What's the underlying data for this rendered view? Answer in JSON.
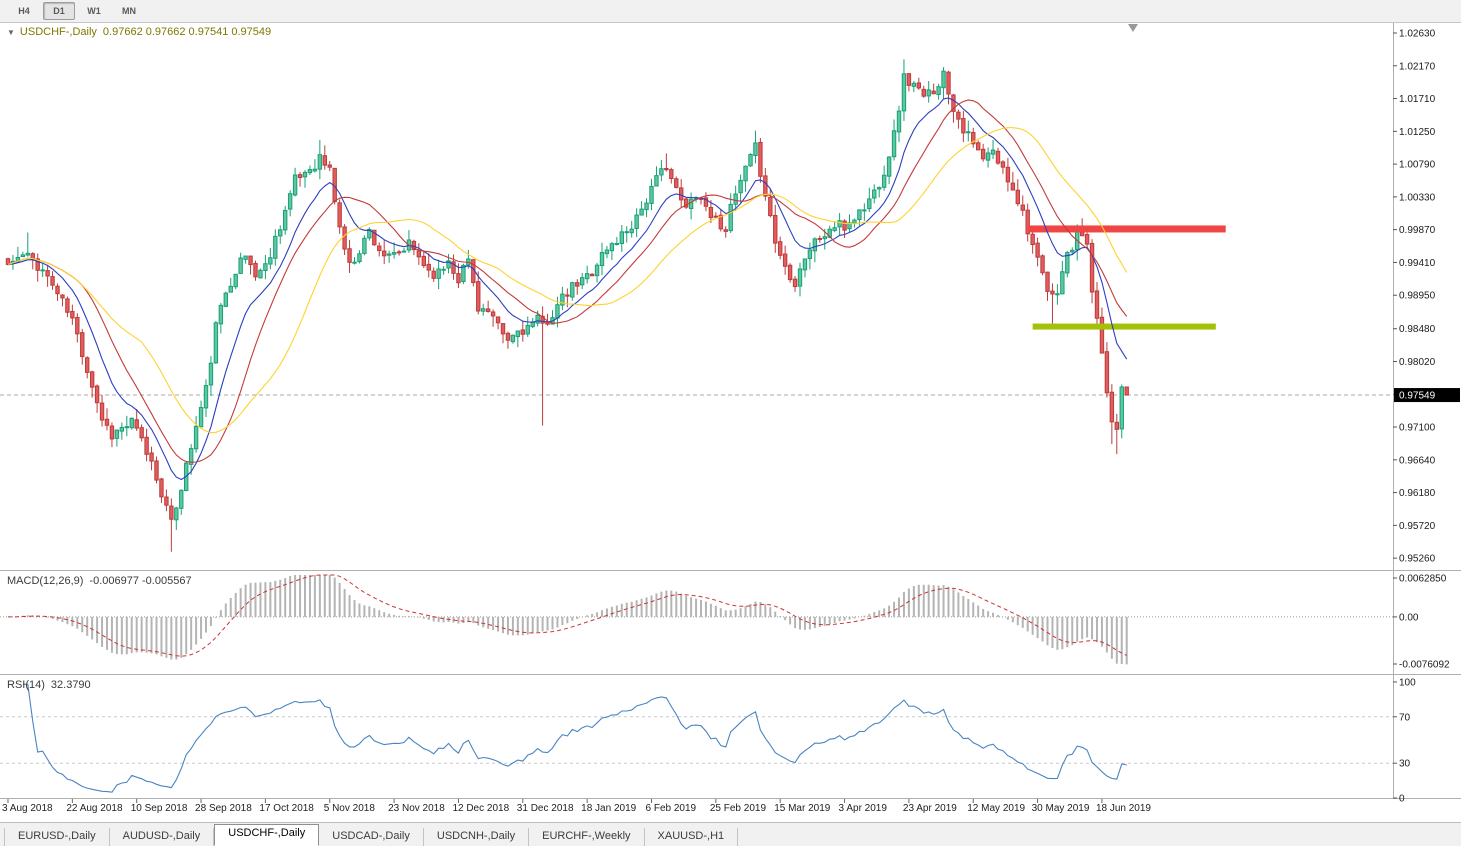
{
  "toolbar": {
    "timeframe_buttons": [
      {
        "label": "H4",
        "active": false
      },
      {
        "label": "D1",
        "active": true
      },
      {
        "label": "W1",
        "active": false
      },
      {
        "label": "MN",
        "active": false
      }
    ]
  },
  "main_chart": {
    "collapse_icon": "▼",
    "title": "USDCHF-,Daily",
    "ohlc_text": "0.97662 0.97662 0.97541 0.97549",
    "current_price_tag": "0.97549",
    "price_axis_labels": [
      "1.02630",
      "1.02170",
      "1.01710",
      "1.01250",
      "1.00790",
      "1.00330",
      "0.99870",
      "0.99410",
      "0.98950",
      "0.98480",
      "0.98020",
      "0.97560",
      "0.97100",
      "0.96640",
      "0.96180",
      "0.95720",
      "0.95260"
    ]
  },
  "macd_panel": {
    "label": "MACD(12,26,9)",
    "values_text": "-0.006977 -0.005567",
    "axis_labels": [
      "0.0062850",
      "0.00",
      "-0.0076092"
    ]
  },
  "rsi_panel": {
    "label": "RSI(14)",
    "value": "32.3790",
    "axis_labels": [
      "100",
      "70",
      "30",
      "0"
    ]
  },
  "time_axis": {
    "bars_per_label": 13,
    "labels": [
      "3 Aug 2018",
      "22 Aug 2018",
      "10 Sep 2018",
      "28 Sep 2018",
      "17 Oct 2018",
      "5 Nov 2018",
      "23 Nov 2018",
      "12 Dec 2018",
      "31 Dec 2018",
      "18 Jan 2019",
      "6 Feb 2019",
      "25 Feb 2019",
      "15 Mar 2019",
      "3 Apr 2019",
      "23 Apr 2019",
      "12 May 2019",
      "30 May 2019",
      "18 Jun 2019"
    ]
  },
  "tab_bar": {
    "tabs": [
      {
        "label": "EURUSD-,Daily",
        "active": false
      },
      {
        "label": "AUDUSD-,Daily",
        "active": false
      },
      {
        "label": "USDCHF-,Daily",
        "active": true
      },
      {
        "label": "USDCAD-,Daily",
        "active": false
      },
      {
        "label": "USDCNH-,Daily",
        "active": false
      },
      {
        "label": "EURCHF-,Weekly",
        "active": false
      },
      {
        "label": "XAUUSD-,H1",
        "active": false
      }
    ]
  },
  "chart_data": {
    "type": "candlestick",
    "title": "USDCHF-,Daily",
    "symbol": "USDCHF-",
    "timeframe": "Daily",
    "bar_count": 227,
    "seed": 11,
    "noise": 0.0018,
    "wick": 0.0016,
    "price_range": {
      "min": 0.9522,
      "max": 1.0263
    },
    "last_candle": {
      "open": 0.97662,
      "high": 0.97662,
      "low": 0.97541,
      "close": 0.97549
    },
    "colors": {
      "up_fill": "#5ec7a0",
      "up_stroke": "#17a077",
      "down_fill": "#e25d5d",
      "down_stroke": "#bc3b3b",
      "background": "#ffffff"
    },
    "price_path_anchors": [
      [
        0,
        0.9938
      ],
      [
        3,
        0.995
      ],
      [
        5,
        0.9945
      ],
      [
        7,
        0.993
      ],
      [
        9,
        0.991
      ],
      [
        11,
        0.9885
      ],
      [
        13,
        0.986
      ],
      [
        15,
        0.9815
      ],
      [
        17,
        0.977
      ],
      [
        19,
        0.9722
      ],
      [
        21,
        0.97
      ],
      [
        23,
        0.9708
      ],
      [
        25,
        0.9716
      ],
      [
        27,
        0.969
      ],
      [
        29,
        0.966
      ],
      [
        31,
        0.962
      ],
      [
        33,
        0.9572
      ],
      [
        34,
        0.96
      ],
      [
        36,
        0.9655
      ],
      [
        38,
        0.971
      ],
      [
        40,
        0.9762
      ],
      [
        42,
        0.985
      ],
      [
        44,
        0.99
      ],
      [
        46,
        0.9932
      ],
      [
        48,
        0.995
      ],
      [
        50,
        0.9925
      ],
      [
        52,
        0.9935
      ],
      [
        54,
        0.9975
      ],
      [
        56,
        1.0015
      ],
      [
        58,
        1.0055
      ],
      [
        60,
        1.0068
      ],
      [
        62,
        1.008
      ],
      [
        63,
        1.0088
      ],
      [
        65,
        1.007
      ],
      [
        66,
        1.003
      ],
      [
        67,
        0.999
      ],
      [
        69,
        0.9935
      ],
      [
        71,
        0.996
      ],
      [
        73,
        0.9985
      ],
      [
        75,
        0.996
      ],
      [
        77,
        0.9945
      ],
      [
        79,
        0.9952
      ],
      [
        81,
        0.9965
      ],
      [
        83,
        0.995
      ],
      [
        85,
        0.993
      ],
      [
        87,
        0.9925
      ],
      [
        89,
        0.9945
      ],
      [
        91,
        0.992
      ],
      [
        93,
        0.9945
      ],
      [
        95,
        0.988
      ],
      [
        97,
        0.987
      ],
      [
        99,
        0.9848
      ],
      [
        101,
        0.983
      ],
      [
        103,
        0.9845
      ],
      [
        105,
        0.985
      ],
      [
        107,
        0.9858
      ],
      [
        108,
        0.9852
      ],
      [
        110,
        0.987
      ],
      [
        112,
        0.9888
      ],
      [
        114,
        0.9905
      ],
      [
        116,
        0.9915
      ],
      [
        118,
        0.993
      ],
      [
        120,
        0.9952
      ],
      [
        122,
        0.9965
      ],
      [
        124,
        0.998
      ],
      [
        126,
        0.9995
      ],
      [
        128,
        1.0018
      ],
      [
        130,
        1.0042
      ],
      [
        132,
        1.0068
      ],
      [
        133,
        1.008
      ],
      [
        135,
        1.004
      ],
      [
        137,
        1.0015
      ],
      [
        139,
        1.004
      ],
      [
        141,
        1.002
      ],
      [
        143,
        1.0
      ],
      [
        145,
        0.9992
      ],
      [
        147,
        1.0035
      ],
      [
        149,
        1.007
      ],
      [
        151,
        1.01
      ],
      [
        153,
        1.004
      ],
      [
        155,
        0.997
      ],
      [
        157,
        0.9935
      ],
      [
        159,
        0.9915
      ],
      [
        161,
        0.995
      ],
      [
        163,
        0.997
      ],
      [
        165,
        0.998
      ],
      [
        167,
        0.9992
      ],
      [
        169,
        0.999
      ],
      [
        171,
        1.0005
      ],
      [
        173,
        1.0018
      ],
      [
        175,
        1.004
      ],
      [
        177,
        1.007
      ],
      [
        179,
        1.012
      ],
      [
        181,
        1.02
      ],
      [
        183,
        1.019
      ],
      [
        185,
        1.017
      ],
      [
        187,
        1.0185
      ],
      [
        189,
        1.0205
      ],
      [
        191,
        1.016
      ],
      [
        193,
        1.013
      ],
      [
        195,
        1.0105
      ],
      [
        197,
        1.0085
      ],
      [
        199,
        1.0095
      ],
      [
        201,
        1.007
      ],
      [
        203,
        1.0048
      ],
      [
        205,
        1.0012
      ],
      [
        206,
        0.999
      ],
      [
        208,
        0.994
      ],
      [
        210,
        0.99
      ],
      [
        211,
        0.989
      ],
      [
        212,
        0.9905
      ],
      [
        214,
        0.995
      ],
      [
        216,
        0.9975
      ],
      [
        217,
        0.9985
      ],
      [
        218,
        0.996
      ],
      [
        219,
        0.99
      ],
      [
        220,
        0.9855
      ],
      [
        221,
        0.9805
      ],
      [
        222,
        0.976
      ],
      [
        223,
        0.9718
      ],
      [
        224,
        0.9708
      ],
      [
        225,
        0.9762
      ],
      [
        226,
        0.97549
      ]
    ],
    "spikes": [
      {
        "i": 4,
        "high": 0.9983
      },
      {
        "i": 33,
        "low": 0.9535
      },
      {
        "i": 63,
        "high": 1.0113
      },
      {
        "i": 108,
        "low": 0.9712
      },
      {
        "i": 133,
        "high": 1.0094
      },
      {
        "i": 151,
        "high": 1.0126
      },
      {
        "i": 181,
        "high": 1.0226
      },
      {
        "i": 189,
        "high": 1.0215
      },
      {
        "i": 211,
        "low": 0.9849
      },
      {
        "i": 217,
        "high": 1.0003
      },
      {
        "i": 223,
        "low": 0.9686
      },
      {
        "i": 224,
        "low": 0.9672
      }
    ],
    "moving_averages": [
      {
        "name": "fast-blue",
        "type": "ema",
        "period": 10,
        "color": "#2b3fc0"
      },
      {
        "name": "mid-red",
        "type": "sma",
        "period": 16,
        "color": "#c23b3b"
      },
      {
        "name": "slow-yellow",
        "type": "sma",
        "period": 28,
        "color": "#ffd22e"
      }
    ],
    "horizontal_levels": [
      {
        "name": "resistance",
        "price": 0.9988,
        "from_bar": 206,
        "to_bar": 246,
        "color": "#ef4545",
        "thickness": 7
      },
      {
        "name": "support",
        "price": 0.9851,
        "from_bar": 207,
        "to_bar": 244,
        "color": "#a3c107",
        "thickness": 6
      }
    ],
    "indicators": {
      "macd": {
        "fast": 12,
        "slow": 26,
        "signal": 9,
        "histogram_color": "#b4b4b4",
        "signal_color": "#cc3333",
        "range": {
          "max": 0.006285,
          "min": -0.0076092
        }
      },
      "rsi": {
        "period": 14,
        "color": "#4a84c4",
        "levels": [
          70,
          30
        ]
      }
    }
  }
}
